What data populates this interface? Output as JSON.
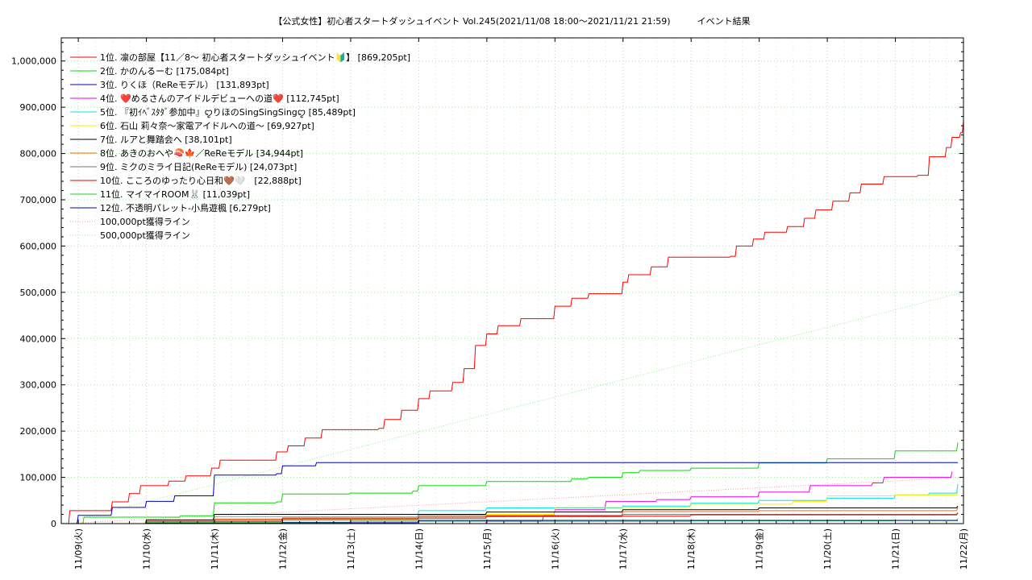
{
  "chart_data": {
    "type": "line",
    "title": "【公式女性】初心者スタートダッシュイベント Vol.245(2021/11/08 18:00～2021/11/21 21:59)　　　イベント結果",
    "xlabel": "",
    "ylabel": "",
    "ylim": [
      0,
      1050000
    ],
    "xlim": [
      "2021-11-08T18:00",
      "2021-11-22T00:00"
    ],
    "x_ticks": [
      "11/09(火)",
      "11/10(水)",
      "11/11(木)",
      "11/12(金)",
      "11/13(土)",
      "11/14(日)",
      "11/15(月)",
      "11/16(火)",
      "11/17(水)",
      "11/18(木)",
      "11/19(金)",
      "11/20(土)",
      "11/21(日)",
      "11/22(月)"
    ],
    "y_ticks": [
      "0",
      "100,000",
      "200,000",
      "300,000",
      "400,000",
      "500,000",
      "600,000",
      "700,000",
      "800,000",
      "900,000",
      "1,000,000"
    ],
    "grid": true,
    "legend_position": "top-left",
    "series": [
      {
        "name": "1位. 凛の部屋【11／8〜 初心者スタートダッシュイベント🔰】 [869,205pt]",
        "color": "#ff0000",
        "points": [
          [
            "2021-11-08T18:00",
            0
          ],
          [
            "2021-11-08T21:00",
            28000
          ],
          [
            "2021-11-09T12:00",
            47000
          ],
          [
            "2021-11-09T18:00",
            65000
          ],
          [
            "2021-11-09T22:00",
            82000
          ],
          [
            "2021-11-10T08:00",
            92000
          ],
          [
            "2021-11-10T14:00",
            103000
          ],
          [
            "2021-11-10T23:00",
            120000
          ],
          [
            "2021-11-11T02:00",
            137000
          ],
          [
            "2021-11-11T22:00",
            155000
          ],
          [
            "2021-11-12T02:00",
            168000
          ],
          [
            "2021-11-12T08:00",
            185000
          ],
          [
            "2021-11-12T14:00",
            203000
          ],
          [
            "2021-11-13T10:00",
            206000
          ],
          [
            "2021-11-13T12:00",
            225000
          ],
          [
            "2021-11-13T18:00",
            245000
          ],
          [
            "2021-11-14T00:00",
            270000
          ],
          [
            "2021-11-14T04:00",
            287000
          ],
          [
            "2021-11-14T12:00",
            305000
          ],
          [
            "2021-11-14T16:00",
            335000
          ],
          [
            "2021-11-14T20:00",
            385000
          ],
          [
            "2021-11-15T00:00",
            410000
          ],
          [
            "2021-11-15T04:00",
            428000
          ],
          [
            "2021-11-15T12:00",
            443000
          ],
          [
            "2021-11-16T00:00",
            470000
          ],
          [
            "2021-11-16T06:00",
            487000
          ],
          [
            "2021-11-16T12:00",
            497000
          ],
          [
            "2021-11-17T00:00",
            522000
          ],
          [
            "2021-11-17T02:00",
            538000
          ],
          [
            "2021-11-17T10:00",
            555000
          ],
          [
            "2021-11-17T16:00",
            576000
          ],
          [
            "2021-11-18T14:00",
            578000
          ],
          [
            "2021-11-18T16:00",
            600000
          ],
          [
            "2021-11-18T22:00",
            615000
          ],
          [
            "2021-11-19T02:00",
            630000
          ],
          [
            "2021-11-19T10:00",
            642000
          ],
          [
            "2021-11-19T16:00",
            660000
          ],
          [
            "2021-11-19T20:00",
            678000
          ],
          [
            "2021-11-20T02:00",
            697000
          ],
          [
            "2021-11-20T08:00",
            715000
          ],
          [
            "2021-11-20T12:00",
            734000
          ],
          [
            "2021-11-20T20:00",
            750000
          ],
          [
            "2021-11-21T08:00",
            753000
          ],
          [
            "2021-11-21T12:00",
            793000
          ],
          [
            "2021-11-21T18:00",
            813000
          ],
          [
            "2021-11-21T20:00",
            835000
          ],
          [
            "2021-11-21T23:00",
            845000
          ],
          [
            "2021-11-22T00:00",
            869205
          ]
        ]
      },
      {
        "name": "2位. かのんるーむ [175,084pt]",
        "color": "#00dd00",
        "points": [
          [
            "2021-11-08T18:00",
            0
          ],
          [
            "2021-11-09T02:00",
            14000
          ],
          [
            "2021-11-10T12:00",
            17000
          ],
          [
            "2021-11-11T00:00",
            45000
          ],
          [
            "2021-11-11T22:00",
            47000
          ],
          [
            "2021-11-12T00:00",
            64000
          ],
          [
            "2021-11-13T00:00",
            66000
          ],
          [
            "2021-11-13T22:00",
            70000
          ],
          [
            "2021-11-14T00:00",
            82000
          ],
          [
            "2021-11-15T00:00",
            91000
          ],
          [
            "2021-11-16T06:00",
            97000
          ],
          [
            "2021-11-16T12:00",
            100000
          ],
          [
            "2021-11-17T00:00",
            110000
          ],
          [
            "2021-11-17T06:00",
            115000
          ],
          [
            "2021-11-18T00:00",
            120000
          ],
          [
            "2021-11-19T00:00",
            131000
          ],
          [
            "2021-11-20T00:00",
            140000
          ],
          [
            "2021-11-21T00:00",
            157000
          ],
          [
            "2021-11-21T22:00",
            175084
          ]
        ]
      },
      {
        "name": "3位. りくほ（ReReモデル） [131,893pt]",
        "color": "#0000cc",
        "points": [
          [
            "2021-11-08T18:00",
            0
          ],
          [
            "2021-11-09T00:00",
            18000
          ],
          [
            "2021-11-09T12:00",
            35000
          ],
          [
            "2021-11-10T00:00",
            48000
          ],
          [
            "2021-11-10T10:00",
            60000
          ],
          [
            "2021-11-11T00:00",
            105000
          ],
          [
            "2021-11-11T22:00",
            108000
          ],
          [
            "2021-11-12T00:00",
            125000
          ],
          [
            "2021-11-12T12:00",
            132000
          ],
          [
            "2021-11-21T22:00",
            131893
          ]
        ]
      },
      {
        "name": "4位. ❤️めるさんのアイドルデビューへの道❤️ [112,745pt]",
        "color": "#ee00ee",
        "points": [
          [
            "2021-11-14T08:00",
            0
          ],
          [
            "2021-11-15T00:00",
            5000
          ],
          [
            "2021-11-15T20:00",
            18000
          ],
          [
            "2021-11-16T00:00",
            30000
          ],
          [
            "2021-11-16T18:00",
            48000
          ],
          [
            "2021-11-17T12:00",
            52000
          ],
          [
            "2021-11-18T00:00",
            58000
          ],
          [
            "2021-11-19T00:00",
            68000
          ],
          [
            "2021-11-19T18:00",
            82000
          ],
          [
            "2021-11-20T16:00",
            88000
          ],
          [
            "2021-11-20T20:00",
            100000
          ],
          [
            "2021-11-21T20:00",
            112745
          ]
        ]
      },
      {
        "name": "5位. 『初ｲﾍﾞｽﾀﾀﾞ参加中』ꨄりほのSingSingSingꨄ [85,489pt]",
        "color": "#00e5e5",
        "points": [
          [
            "2021-11-08T18:00",
            0
          ],
          [
            "2021-11-11T00:00",
            15000
          ],
          [
            "2021-11-14T00:00",
            28000
          ],
          [
            "2021-11-15T00:00",
            34000
          ],
          [
            "2021-11-17T00:00",
            38000
          ],
          [
            "2021-11-18T00:00",
            44000
          ],
          [
            "2021-11-19T00:00",
            50000
          ],
          [
            "2021-11-20T00:00",
            55000
          ],
          [
            "2021-11-21T00:00",
            62000
          ],
          [
            "2021-11-21T12:00",
            66000
          ],
          [
            "2021-11-21T22:00",
            85489
          ]
        ]
      },
      {
        "name": "6位. 石山 莉々奈〜家電アイドルへの道〜 [69,927pt]",
        "color": "#ffee00",
        "points": [
          [
            "2021-11-08T18:00",
            0
          ],
          [
            "2021-11-12T00:00",
            12000
          ],
          [
            "2021-11-15T00:00",
            20000
          ],
          [
            "2021-11-16T00:00",
            35000
          ],
          [
            "2021-11-18T00:00",
            42000
          ],
          [
            "2021-11-19T12:00",
            48000
          ],
          [
            "2021-11-20T00:00",
            60000
          ],
          [
            "2021-11-21T00:00",
            62000
          ],
          [
            "2021-11-21T22:00",
            69927
          ]
        ]
      },
      {
        "name": "7位. ルアと舞踏会へ [38,101pt]",
        "color": "#000000",
        "points": [
          [
            "2021-11-08T18:00",
            0
          ],
          [
            "2021-11-10T00:00",
            8000
          ],
          [
            "2021-11-11T00:00",
            20000
          ],
          [
            "2021-11-15T00:00",
            25000
          ],
          [
            "2021-11-17T00:00",
            30000
          ],
          [
            "2021-11-19T00:00",
            34000
          ],
          [
            "2021-11-21T22:00",
            38101
          ]
        ]
      },
      {
        "name": "8位. あきのおへや🍣🍁／ReReモデル [34,944pt]",
        "color": "#ff6600",
        "points": [
          [
            "2021-11-08T18:00",
            0
          ],
          [
            "2021-11-11T00:00",
            10000
          ],
          [
            "2021-11-14T00:00",
            18000
          ],
          [
            "2021-11-17T00:00",
            26000
          ],
          [
            "2021-11-19T00:00",
            28000
          ],
          [
            "2021-11-21T22:00",
            34944
          ]
        ]
      },
      {
        "name": "9位. ミクのミライ日記(ReReモデル) [24,073pt]",
        "color": "#777777",
        "points": [
          [
            "2021-11-08T18:00",
            0
          ],
          [
            "2021-11-11T00:00",
            8000
          ],
          [
            "2021-11-14T00:00",
            15000
          ],
          [
            "2021-11-17T00:00",
            20000
          ],
          [
            "2021-11-21T22:00",
            24073
          ]
        ]
      },
      {
        "name": "10位. こころのゆったり心日和🤎🤍　[22,888pt]",
        "color": "#dd0000",
        "points": [
          [
            "2021-11-08T18:00",
            0
          ],
          [
            "2021-11-10T00:00",
            5000
          ],
          [
            "2021-11-12T00:00",
            12000
          ],
          [
            "2021-11-15T00:00",
            16000
          ],
          [
            "2021-11-18T00:00",
            19000
          ],
          [
            "2021-11-21T22:00",
            22888
          ]
        ]
      },
      {
        "name": "11位. マイマイROOM🐰 [11,039pt]",
        "color": "#22cc22",
        "points": [
          [
            "2021-11-08T18:00",
            0
          ],
          [
            "2021-11-10T00:00",
            3000
          ],
          [
            "2021-11-13T00:00",
            5000
          ],
          [
            "2021-11-18T00:00",
            6000
          ],
          [
            "2021-11-21T00:00",
            6500
          ],
          [
            "2021-11-21T22:00",
            11039
          ]
        ]
      },
      {
        "name": "12位. 不透明パレット-小鳥遊楓 [6,279pt]",
        "color": "#0000aa",
        "points": [
          [
            "2021-11-08T18:00",
            0
          ],
          [
            "2021-11-10T00:00",
            1000
          ],
          [
            "2021-11-12T00:00",
            2000
          ],
          [
            "2021-11-14T00:00",
            7000
          ],
          [
            "2021-11-21T22:00",
            6279
          ]
        ]
      },
      {
        "name": "100,000pt獲得ライン",
        "color": "#ff9999",
        "dash": true,
        "points": [
          [
            "2021-11-08T18:00",
            0
          ],
          [
            "2021-11-22T00:00",
            100000
          ]
        ]
      },
      {
        "name": "500,000pt獲得ライン",
        "color": "#99ee99",
        "dash": true,
        "points": [
          [
            "2021-11-08T18:00",
            0
          ],
          [
            "2021-11-22T00:00",
            500000
          ]
        ]
      }
    ]
  }
}
